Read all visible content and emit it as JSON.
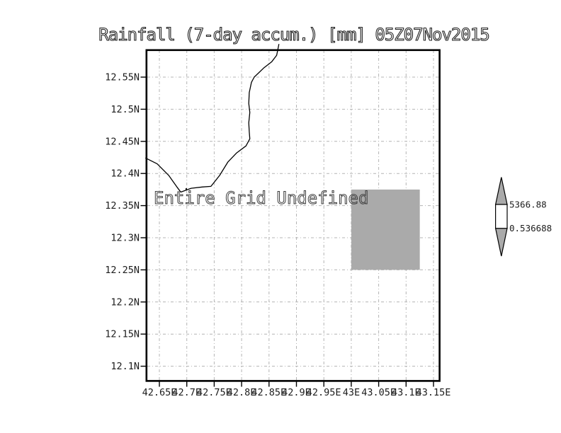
{
  "title": "Rainfall (7-day accum.) [mm] 05Z07Nov2015",
  "plot": {
    "undefined_notice": "Entire Grid Undefined"
  },
  "colorbar": {
    "max_label": "5366.88",
    "min_label": "0.536688",
    "above_color": "#aaaaaa",
    "mid_color": "#ffffff",
    "below_color": "#aaaaaa"
  },
  "chart_data": {
    "type": "heatmap",
    "title": "Rainfall (7-day accum.) [mm] 05Z07Nov2015",
    "subtitle_note": "Entire Grid Undefined",
    "xlabel": "",
    "ylabel": "",
    "x_axis": {
      "units": "degrees east",
      "ticks": [
        42.65,
        42.7,
        42.75,
        42.8,
        42.85,
        42.9,
        42.95,
        43.0,
        43.05,
        43.1,
        43.15
      ],
      "labels": [
        "42.65E",
        "42.7E",
        "42.75E",
        "42.8E",
        "42.85E",
        "42.9E",
        "42.95E",
        "43E",
        "43.05E",
        "43.1E",
        "43.15E"
      ],
      "range": [
        42.628,
        43.16
      ]
    },
    "y_axis": {
      "units": "degrees north",
      "ticks": [
        12.55,
        12.5,
        12.45,
        12.4,
        12.35,
        12.3,
        12.25,
        12.2,
        12.15,
        12.1
      ],
      "labels": [
        "12.55N",
        "12.5N",
        "12.45N",
        "12.4N",
        "12.35N",
        "12.3N",
        "12.25N",
        "12.2N",
        "12.15N",
        "12.1N"
      ],
      "range": [
        12.078,
        12.592
      ]
    },
    "grid": "dash-dot",
    "legend_position": "right",
    "colorbar": {
      "max_value": 5366.88,
      "min_value": 0.536688,
      "max_label": "5366.88",
      "min_label": "0.536688",
      "above_color": "#aaaaaa",
      "mid_color": "#ffffff",
      "below_color": "#aaaaaa"
    },
    "shaded_cell": {
      "lon_min": 43.0,
      "lon_max": 43.125,
      "lat_min": 12.25,
      "lat_max": 12.375,
      "color": "#aaaaaa"
    },
    "coastline": [
      [
        42.625,
        12.424
      ],
      [
        42.646,
        12.415
      ],
      [
        42.667,
        12.397
      ],
      [
        42.682,
        12.379
      ],
      [
        42.689,
        12.371
      ],
      [
        42.708,
        12.377
      ],
      [
        42.728,
        12.379
      ],
      [
        42.744,
        12.38
      ],
      [
        42.76,
        12.397
      ],
      [
        42.775,
        12.418
      ],
      [
        42.791,
        12.432
      ],
      [
        42.808,
        12.443
      ],
      [
        42.815,
        12.454
      ],
      [
        42.814,
        12.465
      ],
      [
        42.813,
        12.479
      ],
      [
        42.815,
        12.495
      ],
      [
        42.813,
        12.509
      ],
      [
        42.814,
        12.526
      ],
      [
        42.818,
        12.542
      ],
      [
        42.823,
        12.55
      ],
      [
        42.84,
        12.564
      ],
      [
        42.855,
        12.574
      ],
      [
        42.864,
        12.584
      ],
      [
        42.868,
        12.601
      ]
    ],
    "islets": [
      [
        42.699,
        12.376
      ]
    ]
  }
}
